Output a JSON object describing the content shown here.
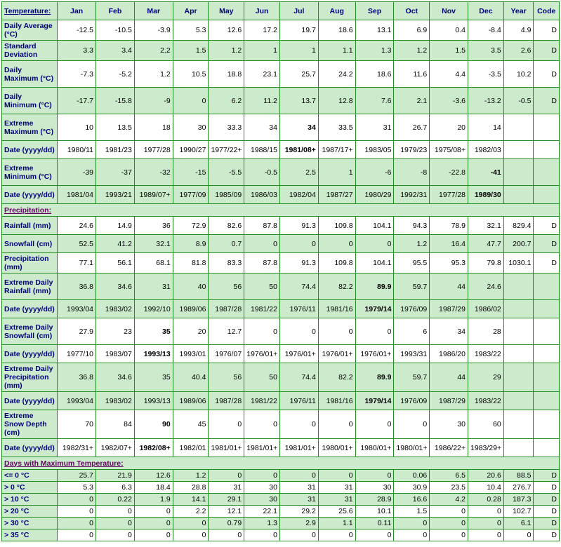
{
  "columns": [
    "Temperature:",
    "Jan",
    "Feb",
    "Mar",
    "Apr",
    "May",
    "Jun",
    "Jul",
    "Aug",
    "Sep",
    "Oct",
    "Nov",
    "Dec",
    "Year",
    "Code"
  ],
  "header_link": "Temperature:",
  "rows": [
    {
      "label": "Daily Average (°C)",
      "shade": false,
      "tall": false,
      "vals": [
        "-12.5",
        "-10.5",
        "-3.9",
        "5.3",
        "12.6",
        "17.2",
        "19.7",
        "18.6",
        "13.1",
        "6.9",
        "0.4",
        "-8.4",
        "4.9",
        "D"
      ],
      "bold": []
    },
    {
      "label": "Standard Deviation",
      "shade": true,
      "tall": false,
      "vals": [
        "3.3",
        "3.4",
        "2.2",
        "1.5",
        "1.2",
        "1",
        "1",
        "1.1",
        "1.3",
        "1.2",
        "1.5",
        "3.5",
        "2.6",
        "D"
      ],
      "bold": []
    },
    {
      "label": "Daily Maximum (°C)",
      "shade": false,
      "tall": true,
      "vals": [
        "-7.3",
        "-5.2",
        "1.2",
        "10.5",
        "18.8",
        "23.1",
        "25.7",
        "24.2",
        "18.6",
        "11.6",
        "4.4",
        "-3.5",
        "10.2",
        "D"
      ],
      "bold": []
    },
    {
      "label": "Daily Minimum (°C)",
      "shade": true,
      "tall": true,
      "vals": [
        "-17.7",
        "-15.8",
        "-9",
        "0",
        "6.2",
        "11.2",
        "13.7",
        "12.8",
        "7.6",
        "2.1",
        "-3.6",
        "-13.2",
        "-0.5",
        "D"
      ],
      "bold": []
    },
    {
      "label": "Extreme Maximum (°C)",
      "shade": false,
      "tall": true,
      "vals": [
        "10",
        "13.5",
        "18",
        "30",
        "33.3",
        "34",
        "34",
        "33.5",
        "31",
        "26.7",
        "20",
        "14",
        "",
        ""
      ],
      "bold": [
        6
      ]
    },
    {
      "label": "Date (yyyy/dd)",
      "shade": false,
      "tall": false,
      "vals": [
        "1980/11",
        "1981/23",
        "1977/28",
        "1990/27",
        "1977/22+",
        "1988/15",
        "1981/08+",
        "1987/17+",
        "1983/05",
        "1979/23",
        "1975/08+",
        "1982/03",
        "",
        ""
      ],
      "bold": [
        6
      ]
    },
    {
      "label": "Extreme Minimum (°C)",
      "shade": true,
      "tall": true,
      "vals": [
        "-39",
        "-37",
        "-32",
        "-15",
        "-5.5",
        "-0.5",
        "2.5",
        "1",
        "-6",
        "-8",
        "-22.8",
        "-41",
        "",
        ""
      ],
      "bold": [
        11
      ]
    },
    {
      "label": "Date (yyyy/dd)",
      "shade": true,
      "tall": false,
      "vals": [
        "1981/04",
        "1993/21",
        "1989/07+",
        "1977/09",
        "1985/09",
        "1986/03",
        "1982/04",
        "1987/27",
        "1980/29",
        "1992/31",
        "1977/28",
        "1989/30",
        "",
        ""
      ],
      "bold": [
        11
      ]
    }
  ],
  "section2": {
    "title": "Precipitation:",
    "link": true
  },
  "rows2": [
    {
      "label": "Rainfall (mm)",
      "shade": false,
      "tall": false,
      "vals": [
        "24.6",
        "14.9",
        "36",
        "72.9",
        "82.6",
        "87.8",
        "91.3",
        "109.8",
        "104.1",
        "94.3",
        "78.9",
        "32.1",
        "829.4",
        "D"
      ],
      "bold": []
    },
    {
      "label": "Snowfall (cm)",
      "shade": true,
      "tall": false,
      "vals": [
        "52.5",
        "41.2",
        "32.1",
        "8.9",
        "0.7",
        "0",
        "0",
        "0",
        "0",
        "1.2",
        "16.4",
        "47.7",
        "200.7",
        "D"
      ],
      "bold": []
    },
    {
      "label": "Precipitation (mm)",
      "shade": false,
      "tall": false,
      "vals": [
        "77.1",
        "56.1",
        "68.1",
        "81.8",
        "83.3",
        "87.8",
        "91.3",
        "109.8",
        "104.1",
        "95.5",
        "95.3",
        "79.8",
        "1030.1",
        "D"
      ],
      "bold": []
    },
    {
      "label": "Extreme Daily Rainfall (mm)",
      "shade": true,
      "tall": true,
      "vals": [
        "36.8",
        "34.6",
        "31",
        "40",
        "56",
        "50",
        "74.4",
        "82.2",
        "89.9",
        "59.7",
        "44",
        "24.6",
        "",
        ""
      ],
      "bold": [
        8
      ]
    },
    {
      "label": "Date (yyyy/dd)",
      "shade": true,
      "tall": false,
      "vals": [
        "1993/04",
        "1983/02",
        "1992/10",
        "1989/06",
        "1987/28",
        "1981/22",
        "1976/11",
        "1981/16",
        "1979/14",
        "1976/09",
        "1987/29",
        "1986/02",
        "",
        ""
      ],
      "bold": [
        8
      ]
    },
    {
      "label": "Extreme Daily Snowfall (cm)",
      "shade": false,
      "tall": true,
      "vals": [
        "27.9",
        "23",
        "35",
        "20",
        "12.7",
        "0",
        "0",
        "0",
        "0",
        "6",
        "34",
        "28",
        "",
        ""
      ],
      "bold": [
        2
      ]
    },
    {
      "label": "Date (yyyy/dd)",
      "shade": false,
      "tall": false,
      "vals": [
        "1977/10",
        "1983/07",
        "1993/13",
        "1993/01",
        "1976/07",
        "1976/01+",
        "1976/01+",
        "1976/01+",
        "1976/01+",
        "1993/31",
        "1986/20",
        "1983/22",
        "",
        ""
      ],
      "bold": [
        2
      ]
    },
    {
      "label": "Extreme Daily Precipitation (mm)",
      "shade": true,
      "tall": true,
      "vals": [
        "36.8",
        "34.6",
        "35",
        "40.4",
        "56",
        "50",
        "74.4",
        "82.2",
        "89.9",
        "59.7",
        "44",
        "29",
        "",
        ""
      ],
      "bold": [
        8
      ]
    },
    {
      "label": "Date (yyyy/dd)",
      "shade": true,
      "tall": false,
      "vals": [
        "1993/04",
        "1983/02",
        "1993/13",
        "1989/06",
        "1987/28",
        "1981/22",
        "1976/11",
        "1981/16",
        "1979/14",
        "1976/09",
        "1987/29",
        "1983/22",
        "",
        ""
      ],
      "bold": [
        8
      ]
    },
    {
      "label": "Extreme Snow Depth (cm)",
      "shade": false,
      "tall": true,
      "vals": [
        "70",
        "84",
        "90",
        "45",
        "0",
        "0",
        "0",
        "0",
        "0",
        "0",
        "30",
        "60",
        "",
        ""
      ],
      "bold": [
        2
      ]
    },
    {
      "label": "Date (yyyy/dd)",
      "shade": false,
      "tall": false,
      "vals": [
        "1982/31+",
        "1982/07+",
        "1982/08+",
        "1982/01",
        "1981/01+",
        "1981/01+",
        "1981/01+",
        "1980/01+",
        "1980/01+",
        "1980/01+",
        "1986/22+",
        "1983/29+",
        "",
        ""
      ],
      "bold": [
        2
      ]
    }
  ],
  "section3": {
    "title": "Days with Maximum Temperature:",
    "link": true
  },
  "rows3": [
    {
      "label": "<= 0 °C",
      "shade": true,
      "vals": [
        "25.7",
        "21.9",
        "12.6",
        "1.2",
        "0",
        "0",
        "0",
        "0",
        "0",
        "0.06",
        "6.5",
        "20.6",
        "88.5",
        "D"
      ],
      "bold": []
    },
    {
      "label": "> 0 °C",
      "shade": false,
      "vals": [
        "5.3",
        "6.3",
        "18.4",
        "28.8",
        "31",
        "30",
        "31",
        "31",
        "30",
        "30.9",
        "23.5",
        "10.4",
        "276.7",
        "D"
      ],
      "bold": []
    },
    {
      "label": "> 10 °C",
      "shade": true,
      "vals": [
        "0",
        "0.22",
        "1.9",
        "14.1",
        "29.1",
        "30",
        "31",
        "31",
        "28.9",
        "16.6",
        "4.2",
        "0.28",
        "187.3",
        "D"
      ],
      "bold": []
    },
    {
      "label": "> 20 °C",
      "shade": false,
      "vals": [
        "0",
        "0",
        "0",
        "2.2",
        "12.1",
        "22.1",
        "29.2",
        "25.6",
        "10.1",
        "1.5",
        "0",
        "0",
        "102.7",
        "D"
      ],
      "bold": []
    },
    {
      "label": "> 30 °C",
      "shade": true,
      "vals": [
        "0",
        "0",
        "0",
        "0",
        "0.79",
        "1.3",
        "2.9",
        "1.1",
        "0.11",
        "0",
        "0",
        "0",
        "6.1",
        "D"
      ],
      "bold": []
    },
    {
      "label": "> 35 °C",
      "shade": false,
      "vals": [
        "0",
        "0",
        "0",
        "0",
        "0",
        "0",
        "0",
        "0",
        "0",
        "0",
        "0",
        "0",
        "0",
        "D"
      ],
      "bold": []
    }
  ]
}
